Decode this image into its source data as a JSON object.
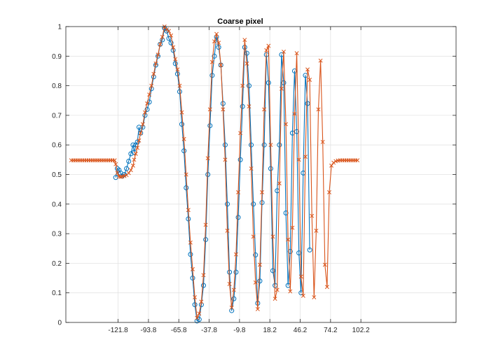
{
  "chart_data": {
    "type": "line",
    "title": "Coarse pixel",
    "xlabel": "",
    "ylabel": "",
    "xlim": [
      -170,
      190
    ],
    "ylim": [
      0,
      1
    ],
    "grid": true,
    "x_ticks": [
      -121.8,
      -93.8,
      -65.8,
      -37.8,
      -9.8,
      18.2,
      46.2,
      74.2,
      102.2
    ],
    "x_tick_labels": [
      "-121.8",
      "-93.8",
      "-65.8",
      "-37.8",
      "-9.8",
      "18.2",
      "46.2",
      "74.2",
      "102.2"
    ],
    "y_ticks": [
      0,
      0.1,
      0.2,
      0.3,
      0.4,
      0.5,
      0.6,
      0.7,
      0.8,
      0.9,
      1
    ],
    "y_tick_labels": [
      "0",
      "0.1",
      "0.2",
      "0.3",
      "0.4",
      "0.5",
      "0.6",
      "0.7",
      "0.8",
      "0.9",
      "1"
    ],
    "series": [
      {
        "marker": "circle",
        "color": "#0072BD",
        "points": [
          [
            -124.0,
            0.49
          ],
          [
            -122.5,
            0.52
          ],
          [
            -121.0,
            0.515
          ],
          [
            -119.5,
            0.505
          ],
          [
            -118.0,
            0.495
          ],
          [
            -116.0,
            0.5
          ],
          [
            -114.0,
            0.52
          ],
          [
            -112.0,
            0.545
          ],
          [
            -110.0,
            0.57
          ],
          [
            -108.0,
            0.6
          ],
          [
            -107.0,
            0.575
          ],
          [
            -105.5,
            0.6
          ],
          [
            -104.0,
            0.61
          ],
          [
            -102.5,
            0.66
          ],
          [
            -101.0,
            0.64
          ],
          [
            -99.0,
            0.66
          ],
          [
            -97.0,
            0.7
          ],
          [
            -95.0,
            0.72
          ],
          [
            -93.0,
            0.745
          ],
          [
            -91.0,
            0.79
          ],
          [
            -89.0,
            0.83
          ],
          [
            -87.0,
            0.87
          ],
          [
            -85.0,
            0.9
          ],
          [
            -83.0,
            0.94
          ],
          [
            -81.0,
            0.955
          ],
          [
            -79.0,
            0.995
          ],
          [
            -77.0,
            0.985
          ],
          [
            -75.0,
            0.96
          ],
          [
            -73.0,
            0.945
          ],
          [
            -71.0,
            0.92
          ],
          [
            -69.0,
            0.875
          ],
          [
            -67.0,
            0.84
          ],
          [
            -65.0,
            0.78
          ],
          [
            -63.0,
            0.67
          ],
          [
            -61.0,
            0.58
          ],
          [
            -59.0,
            0.455
          ],
          [
            -57.0,
            0.35
          ],
          [
            -55.0,
            0.23
          ],
          [
            -53.0,
            0.15
          ],
          [
            -51.0,
            0.06
          ],
          [
            -49.0,
            0.005
          ],
          [
            -47.0,
            0.01
          ],
          [
            -45.0,
            0.06
          ],
          [
            -43.0,
            0.125
          ],
          [
            -41.0,
            0.28
          ],
          [
            -39.0,
            0.5
          ],
          [
            -37.0,
            0.665
          ],
          [
            -35.0,
            0.835
          ],
          [
            -33.0,
            0.9
          ],
          [
            -31.0,
            0.965
          ],
          [
            -29.0,
            0.93
          ],
          [
            -27.0,
            0.87
          ],
          [
            -25.0,
            0.74
          ],
          [
            -23.0,
            0.6
          ],
          [
            -21.0,
            0.4
          ],
          [
            -19.0,
            0.17
          ],
          [
            -17.0,
            0.04
          ],
          [
            -15.0,
            0.08
          ],
          [
            -13.0,
            0.17
          ],
          [
            -11.0,
            0.355
          ],
          [
            -9.0,
            0.55
          ],
          [
            -7.0,
            0.73
          ],
          [
            -5.0,
            0.93
          ],
          [
            -3.0,
            0.91
          ],
          [
            -1.0,
            0.8
          ],
          [
            1.0,
            0.6
          ],
          [
            3.0,
            0.4
          ],
          [
            5.0,
            0.228
          ],
          [
            7.0,
            0.065
          ],
          [
            9.0,
            0.14
          ],
          [
            11.0,
            0.405
          ],
          [
            13.0,
            0.6
          ],
          [
            15.0,
            0.905
          ],
          [
            17.0,
            0.81
          ],
          [
            19.0,
            0.52
          ],
          [
            21.0,
            0.175
          ],
          [
            23.0,
            0.125
          ],
          [
            25.0,
            0.445
          ],
          [
            27.0,
            0.6
          ],
          [
            29.0,
            0.905
          ],
          [
            31.0,
            0.81
          ],
          [
            33.0,
            0.37
          ],
          [
            35.0,
            0.125
          ],
          [
            37.0,
            0.24
          ],
          [
            39.0,
            0.64
          ],
          [
            41.0,
            0.85
          ],
          [
            43.0,
            0.645
          ],
          [
            45.0,
            0.235
          ],
          [
            47.0,
            0.1
          ],
          [
            49.0,
            0.505
          ],
          [
            51.0,
            0.835
          ],
          [
            53.0,
            0.74
          ],
          [
            55.0,
            0.245
          ]
        ]
      },
      {
        "marker": "x",
        "color": "#D95319",
        "points": [
          [
            -165,
            0.548
          ],
          [
            -163,
            0.548
          ],
          [
            -161,
            0.548
          ],
          [
            -159,
            0.548
          ],
          [
            -157,
            0.548
          ],
          [
            -155,
            0.548
          ],
          [
            -153,
            0.548
          ],
          [
            -151,
            0.548
          ],
          [
            -149,
            0.548
          ],
          [
            -147,
            0.548
          ],
          [
            -145,
            0.548
          ],
          [
            -143,
            0.548
          ],
          [
            -141,
            0.548
          ],
          [
            -139,
            0.548
          ],
          [
            -137,
            0.548
          ],
          [
            -135,
            0.548
          ],
          [
            -133,
            0.548
          ],
          [
            -131,
            0.548
          ],
          [
            -129,
            0.548
          ],
          [
            -127,
            0.548
          ],
          [
            -125,
            0.548
          ],
          [
            -124,
            0.535
          ],
          [
            -122.5,
            0.505
          ],
          [
            -121,
            0.493
          ],
          [
            -119.5,
            0.492
          ],
          [
            -118,
            0.493
          ],
          [
            -116,
            0.495
          ],
          [
            -114,
            0.498
          ],
          [
            -112,
            0.505
          ],
          [
            -110,
            0.515
          ],
          [
            -108,
            0.53
          ],
          [
            -107,
            0.55
          ],
          [
            -105.5,
            0.57
          ],
          [
            -104,
            0.59
          ],
          [
            -102.5,
            0.615
          ],
          [
            -101,
            0.64
          ],
          [
            -99,
            0.67
          ],
          [
            -97,
            0.71
          ],
          [
            -95,
            0.74
          ],
          [
            -93,
            0.77
          ],
          [
            -91,
            0.8
          ],
          [
            -89,
            0.84
          ],
          [
            -87,
            0.875
          ],
          [
            -85,
            0.905
          ],
          [
            -83,
            0.94
          ],
          [
            -81,
            0.965
          ],
          [
            -79,
            1.0
          ],
          [
            -77,
            0.99
          ],
          [
            -75,
            0.985
          ],
          [
            -73,
            0.97
          ],
          [
            -71,
            0.93
          ],
          [
            -69,
            0.89
          ],
          [
            -67,
            0.855
          ],
          [
            -65,
            0.8
          ],
          [
            -63,
            0.71
          ],
          [
            -61,
            0.62
          ],
          [
            -59,
            0.5
          ],
          [
            -57,
            0.38
          ],
          [
            -55,
            0.27
          ],
          [
            -53,
            0.18
          ],
          [
            -51,
            0.085
          ],
          [
            -49,
            0.015
          ],
          [
            -47,
            0.03
          ],
          [
            -45,
            0.07
          ],
          [
            -43,
            0.16
          ],
          [
            -41,
            0.33
          ],
          [
            -39,
            0.555
          ],
          [
            -37,
            0.72
          ],
          [
            -35,
            0.88
          ],
          [
            -33,
            0.95
          ],
          [
            -31,
            0.975
          ],
          [
            -29,
            0.945
          ],
          [
            -27,
            0.87
          ],
          [
            -25,
            0.72
          ],
          [
            -23,
            0.55
          ],
          [
            -21,
            0.31
          ],
          [
            -19,
            0.13
          ],
          [
            -17,
            0.05
          ],
          [
            -15,
            0.11
          ],
          [
            -13,
            0.23
          ],
          [
            -11,
            0.44
          ],
          [
            -9,
            0.64
          ],
          [
            -7,
            0.8
          ],
          [
            -5,
            0.955
          ],
          [
            -3,
            0.875
          ],
          [
            -1,
            0.73
          ],
          [
            1,
            0.52
          ],
          [
            3,
            0.29
          ],
          [
            5,
            0.135
          ],
          [
            7,
            0.045
          ],
          [
            9,
            0.195
          ],
          [
            11,
            0.44
          ],
          [
            13,
            0.72
          ],
          [
            15,
            0.92
          ],
          [
            17,
            0.935
          ],
          [
            19,
            0.6
          ],
          [
            21,
            0.29
          ],
          [
            23,
            0.08
          ],
          [
            25,
            0.11
          ],
          [
            27,
            0.47
          ],
          [
            29,
            0.79
          ],
          [
            31,
            0.915
          ],
          [
            33,
            0.67
          ],
          [
            35,
            0.28
          ],
          [
            37,
            0.105
          ],
          [
            39,
            0.32
          ],
          [
            41,
            0.705
          ],
          [
            43,
            0.91
          ],
          [
            45,
            0.55
          ],
          [
            47,
            0.155
          ],
          [
            49,
            0.09
          ],
          [
            51,
            0.56
          ],
          [
            53,
            0.855
          ],
          [
            55,
            0.82
          ],
          [
            57,
            0.36
          ],
          [
            59,
            0.085
          ],
          [
            61,
            0.31
          ],
          [
            63,
            0.72
          ],
          [
            65,
            0.885
          ],
          [
            67,
            0.61
          ],
          [
            69,
            0.195
          ],
          [
            71,
            0.12
          ],
          [
            73,
            0.44
          ],
          [
            75,
            0.53
          ],
          [
            77,
            0.54
          ],
          [
            79,
            0.545
          ],
          [
            81,
            0.547
          ],
          [
            83,
            0.548
          ],
          [
            85,
            0.548
          ],
          [
            87,
            0.548
          ],
          [
            89,
            0.548
          ],
          [
            91,
            0.548
          ],
          [
            93,
            0.548
          ],
          [
            95,
            0.548
          ],
          [
            97,
            0.548
          ],
          [
            99,
            0.548
          ]
        ]
      }
    ]
  }
}
